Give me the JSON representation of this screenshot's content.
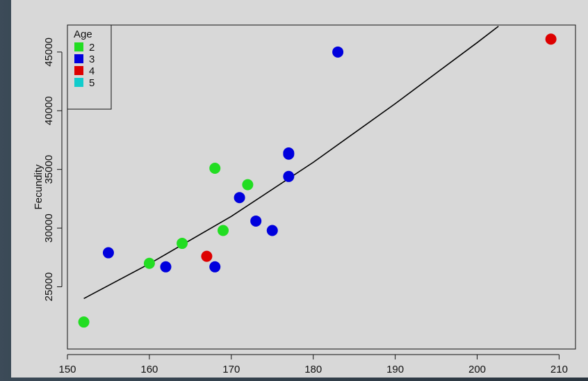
{
  "chart_data": {
    "type": "scatter",
    "title": "",
    "xlabel": "",
    "ylabel": "Fecundity",
    "xlim": [
      150,
      212
    ],
    "ylim": [
      19700,
      47300
    ],
    "x_ticks": [
      150,
      160,
      170,
      180,
      190,
      200,
      210
    ],
    "y_ticks": [
      25000,
      30000,
      35000,
      40000,
      45000
    ],
    "grid": false,
    "legend": {
      "title": "Age",
      "placement": "top-left",
      "entries": [
        {
          "label": "2",
          "color": "#22dd22"
        },
        {
          "label": "3",
          "color": "#0000dd"
        },
        {
          "label": "4",
          "color": "#dd0000"
        },
        {
          "label": "5",
          "color": "#11cccc"
        }
      ]
    },
    "series": [
      {
        "name": "2",
        "color": "#22dd22",
        "points": [
          [
            152,
            22000
          ],
          [
            160,
            27000
          ],
          [
            164,
            28700
          ],
          [
            168,
            35100
          ],
          [
            169,
            29800
          ],
          [
            172,
            33700
          ]
        ]
      },
      {
        "name": "3",
        "color": "#0000dd",
        "points": [
          [
            155,
            27900
          ],
          [
            162,
            26700
          ],
          [
            168,
            26700
          ],
          [
            171,
            32600
          ],
          [
            173,
            30600
          ],
          [
            175,
            29800
          ],
          [
            177,
            34400
          ],
          [
            177,
            36300
          ],
          [
            177,
            36400
          ],
          [
            183,
            45000
          ]
        ]
      },
      {
        "name": "4",
        "color": "#dd0000",
        "points": [
          [
            167,
            27600
          ],
          [
            209,
            46100
          ]
        ]
      },
      {
        "name": "5",
        "color": "#11cccc",
        "points": []
      }
    ],
    "fit_line": [
      [
        152,
        24000
      ],
      [
        160,
        26960
      ],
      [
        170,
        31000
      ],
      [
        180,
        35600
      ],
      [
        190,
        40600
      ],
      [
        200,
        45800
      ],
      [
        202.6,
        47200
      ]
    ]
  }
}
